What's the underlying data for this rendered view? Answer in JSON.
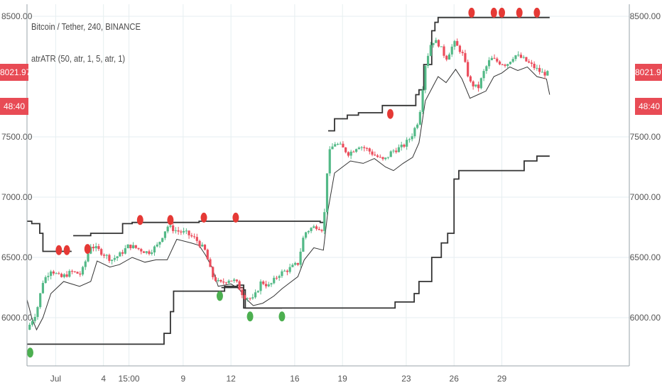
{
  "legend": {
    "title": "Bitcoin / Tether, 240, BINANCE",
    "indicator": "atrATR (50, atr, 1, 5, atr, 1)"
  },
  "price_tag": {
    "value": "8021.97",
    "countdown": "48:40"
  },
  "colors": {
    "background": "#ffffff",
    "grid": "#e6eef0",
    "axis_line": "#9aa3a8",
    "axis_text": "#555555",
    "candle_up": "#53b987",
    "candle_down": "#eb4d5c",
    "stop_line": "#333333",
    "signal_buy": "#4caf50",
    "signal_sell": "#e53935",
    "price_tag_bg": "#e84b55"
  },
  "chart_data": {
    "type": "candlestick",
    "title": "Bitcoin / Tether, 240, BINANCE",
    "ylim": [
      5600,
      8600
    ],
    "xlim": [
      -1.8,
      36
    ],
    "y_ticks": [
      "8500.00",
      "7500.00",
      "7000.00",
      "6500.00",
      "6000.00"
    ],
    "x_ticks": [
      {
        "label": "Jul",
        "x": 0
      },
      {
        "label": "4",
        "x": 3
      },
      {
        "label": "15:00",
        "x": 4.6
      },
      {
        "label": "9",
        "x": 8
      },
      {
        "label": "12",
        "x": 11
      },
      {
        "label": "16",
        "x": 15
      },
      {
        "label": "19",
        "x": 18
      },
      {
        "label": "23",
        "x": 22
      },
      {
        "label": "26",
        "x": 25
      },
      {
        "label": "29",
        "x": 28
      }
    ],
    "close_path": [
      [
        -1.8,
        5900
      ],
      [
        -1.2,
        6050
      ],
      [
        -0.8,
        6300
      ],
      [
        -0.3,
        6400
      ],
      [
        0.3,
        6330
      ],
      [
        1.0,
        6380
      ],
      [
        1.6,
        6360
      ],
      [
        2.2,
        6600
      ],
      [
        2.8,
        6550
      ],
      [
        3.5,
        6480
      ],
      [
        4.0,
        6520
      ],
      [
        4.6,
        6600
      ],
      [
        5.2,
        6570
      ],
      [
        5.8,
        6540
      ],
      [
        6.4,
        6600
      ],
      [
        7.0,
        6760
      ],
      [
        7.6,
        6720
      ],
      [
        8.2,
        6700
      ],
      [
        8.8,
        6650
      ],
      [
        9.4,
        6550
      ],
      [
        9.8,
        6350
      ],
      [
        10.3,
        6280
      ],
      [
        10.9,
        6320
      ],
      [
        11.3,
        6300
      ],
      [
        11.8,
        6180
      ],
      [
        12.4,
        6150
      ],
      [
        12.9,
        6300
      ],
      [
        13.4,
        6260
      ],
      [
        14.0,
        6360
      ],
      [
        14.6,
        6400
      ],
      [
        15.2,
        6450
      ],
      [
        15.6,
        6700
      ],
      [
        16.0,
        6740
      ],
      [
        16.4,
        6760
      ],
      [
        16.8,
        6730
      ],
      [
        17.1,
        7350
      ],
      [
        17.5,
        7450
      ],
      [
        17.9,
        7420
      ],
      [
        18.4,
        7360
      ],
      [
        19.0,
        7430
      ],
      [
        19.5,
        7400
      ],
      [
        20.0,
        7350
      ],
      [
        20.6,
        7300
      ],
      [
        21.1,
        7380
      ],
      [
        21.8,
        7420
      ],
      [
        22.3,
        7500
      ],
      [
        22.8,
        7650
      ],
      [
        23.2,
        8100
      ],
      [
        23.6,
        8300
      ],
      [
        24.0,
        8280
      ],
      [
        24.5,
        8150
      ],
      [
        25.0,
        8280
      ],
      [
        25.5,
        8200
      ],
      [
        26.0,
        7950
      ],
      [
        26.5,
        7900
      ],
      [
        26.9,
        8050
      ],
      [
        27.3,
        8150
      ],
      [
        27.8,
        8120
      ],
      [
        28.3,
        8100
      ],
      [
        28.8,
        8180
      ],
      [
        29.3,
        8150
      ],
      [
        29.8,
        8100
      ],
      [
        30.5,
        8030
      ],
      [
        31.0,
        8021.97
      ]
    ],
    "series": [
      {
        "kind": "step",
        "values": [
          [
            -1.8,
            6800
          ],
          [
            -1.5,
            6780
          ],
          [
            -1.0,
            6700
          ],
          [
            -0.8,
            6550
          ],
          [
            0.8,
            6550
          ],
          [
            1.0,
            6550
          ]
        ]
      },
      {
        "kind": "step",
        "values": [
          [
            1.1,
            6680
          ],
          [
            2.2,
            6700
          ],
          [
            4.2,
            6780
          ],
          [
            4.8,
            6790
          ],
          [
            6.5,
            6790
          ],
          [
            8.4,
            6790
          ],
          [
            9.0,
            6800
          ],
          [
            15.9,
            6800
          ],
          [
            16.6,
            6790
          ],
          [
            16.8,
            6790
          ]
        ]
      },
      {
        "kind": "step",
        "values": [
          [
            17.1,
            7550
          ],
          [
            17.5,
            7650
          ],
          [
            18.3,
            7680
          ],
          [
            19.0,
            7700
          ],
          [
            20.5,
            7760
          ],
          [
            21.8,
            7760
          ],
          [
            22.6,
            7850
          ],
          [
            22.8,
            7890
          ],
          [
            23.1,
            8100
          ],
          [
            23.6,
            8380
          ],
          [
            23.8,
            8450
          ],
          [
            24.0,
            8490
          ],
          [
            29.5,
            8490
          ],
          [
            31.0,
            8490
          ]
        ]
      },
      {
        "kind": "line",
        "values": [
          [
            -1.8,
            6150
          ],
          [
            -1.5,
            6000
          ],
          [
            -1.2,
            5900
          ],
          [
            -0.8,
            6000
          ],
          [
            -0.3,
            6200
          ],
          [
            0.5,
            6300
          ],
          [
            1.5,
            6260
          ],
          [
            2.2,
            6300
          ],
          [
            2.6,
            6470
          ],
          [
            3.4,
            6420
          ],
          [
            4.0,
            6440
          ],
          [
            4.8,
            6500
          ],
          [
            5.6,
            6460
          ],
          [
            6.3,
            6480
          ],
          [
            7.0,
            6480
          ],
          [
            7.6,
            6650
          ],
          [
            8.5,
            6620
          ],
          [
            9.0,
            6600
          ],
          [
            9.4,
            6520
          ],
          [
            9.8,
            6420
          ],
          [
            10.2,
            6260
          ],
          [
            11.0,
            6280
          ],
          [
            11.5,
            6240
          ],
          [
            12.0,
            6150
          ],
          [
            12.4,
            6100
          ],
          [
            13.0,
            6120
          ],
          [
            13.7,
            6180
          ],
          [
            14.2,
            6240
          ],
          [
            14.6,
            6280
          ],
          [
            15.2,
            6340
          ],
          [
            15.6,
            6480
          ],
          [
            16.2,
            6580
          ],
          [
            16.8,
            6560
          ],
          [
            17.1,
            6900
          ],
          [
            17.5,
            7200
          ],
          [
            18.0,
            7250
          ],
          [
            18.5,
            7300
          ],
          [
            19.3,
            7280
          ],
          [
            20.0,
            7320
          ],
          [
            20.7,
            7250
          ],
          [
            21.2,
            7220
          ],
          [
            21.8,
            7280
          ],
          [
            22.4,
            7330
          ],
          [
            22.8,
            7450
          ],
          [
            23.2,
            7800
          ],
          [
            23.6,
            7900
          ],
          [
            24.0,
            8000
          ],
          [
            24.5,
            7950
          ],
          [
            25.1,
            8060
          ],
          [
            25.5,
            7980
          ],
          [
            26.0,
            7820
          ],
          [
            26.5,
            7850
          ],
          [
            27.0,
            7880
          ],
          [
            27.5,
            8000
          ],
          [
            28.0,
            8030
          ],
          [
            28.5,
            8080
          ],
          [
            29.0,
            8050
          ],
          [
            29.6,
            8080
          ],
          [
            30.2,
            8000
          ],
          [
            30.8,
            7980
          ],
          [
            31.0,
            7850
          ]
        ]
      },
      {
        "kind": "step",
        "values": [
          [
            -1.8,
            5780
          ],
          [
            4.8,
            5780
          ],
          [
            6.4,
            5780
          ],
          [
            6.8,
            5870
          ],
          [
            7.2,
            6050
          ],
          [
            7.4,
            6220
          ],
          [
            9.0,
            6220
          ],
          [
            10.2,
            6220
          ],
          [
            10.6,
            6260
          ],
          [
            11.4,
            6270
          ],
          [
            11.8,
            6080
          ],
          [
            12.4,
            6080
          ],
          [
            14.2,
            6080
          ],
          [
            20.8,
            6080
          ],
          [
            21.3,
            6130
          ],
          [
            22.5,
            6200
          ],
          [
            22.8,
            6300
          ],
          [
            23.6,
            6500
          ],
          [
            24.2,
            6620
          ],
          [
            24.6,
            6700
          ],
          [
            25.0,
            7150
          ],
          [
            25.3,
            7220
          ],
          [
            28.5,
            7220
          ],
          [
            29.4,
            7300
          ],
          [
            30.2,
            7340
          ],
          [
            31.0,
            7340
          ]
        ]
      },
      {
        "kind": "step",
        "values": [
          [
            10.4,
            6250
          ],
          [
            11.8,
            6230
          ],
          [
            11.9,
            6080
          ],
          [
            14.2,
            6080
          ]
        ]
      }
    ],
    "signals": [
      {
        "type": "buy",
        "x": -1.6,
        "y": 5710
      },
      {
        "type": "sell",
        "x": 0.2,
        "y": 6560
      },
      {
        "type": "sell",
        "x": 0.7,
        "y": 6560
      },
      {
        "type": "sell",
        "x": 2.0,
        "y": 6570
      },
      {
        "type": "sell",
        "x": 5.3,
        "y": 6810
      },
      {
        "type": "sell",
        "x": 7.2,
        "y": 6810
      },
      {
        "type": "sell",
        "x": 9.3,
        "y": 6830
      },
      {
        "type": "buy",
        "x": 10.3,
        "y": 6180
      },
      {
        "type": "sell",
        "x": 11.3,
        "y": 6830
      },
      {
        "type": "buy",
        "x": 12.2,
        "y": 6010
      },
      {
        "type": "buy",
        "x": 14.2,
        "y": 6010
      },
      {
        "type": "sell",
        "x": 21.0,
        "y": 7690
      },
      {
        "type": "sell",
        "x": 26.1,
        "y": 8530
      },
      {
        "type": "sell",
        "x": 27.5,
        "y": 8530
      },
      {
        "type": "sell",
        "x": 28.0,
        "y": 8530
      },
      {
        "type": "sell",
        "x": 29.1,
        "y": 8530
      },
      {
        "type": "sell",
        "x": 30.2,
        "y": 8530
      }
    ]
  }
}
